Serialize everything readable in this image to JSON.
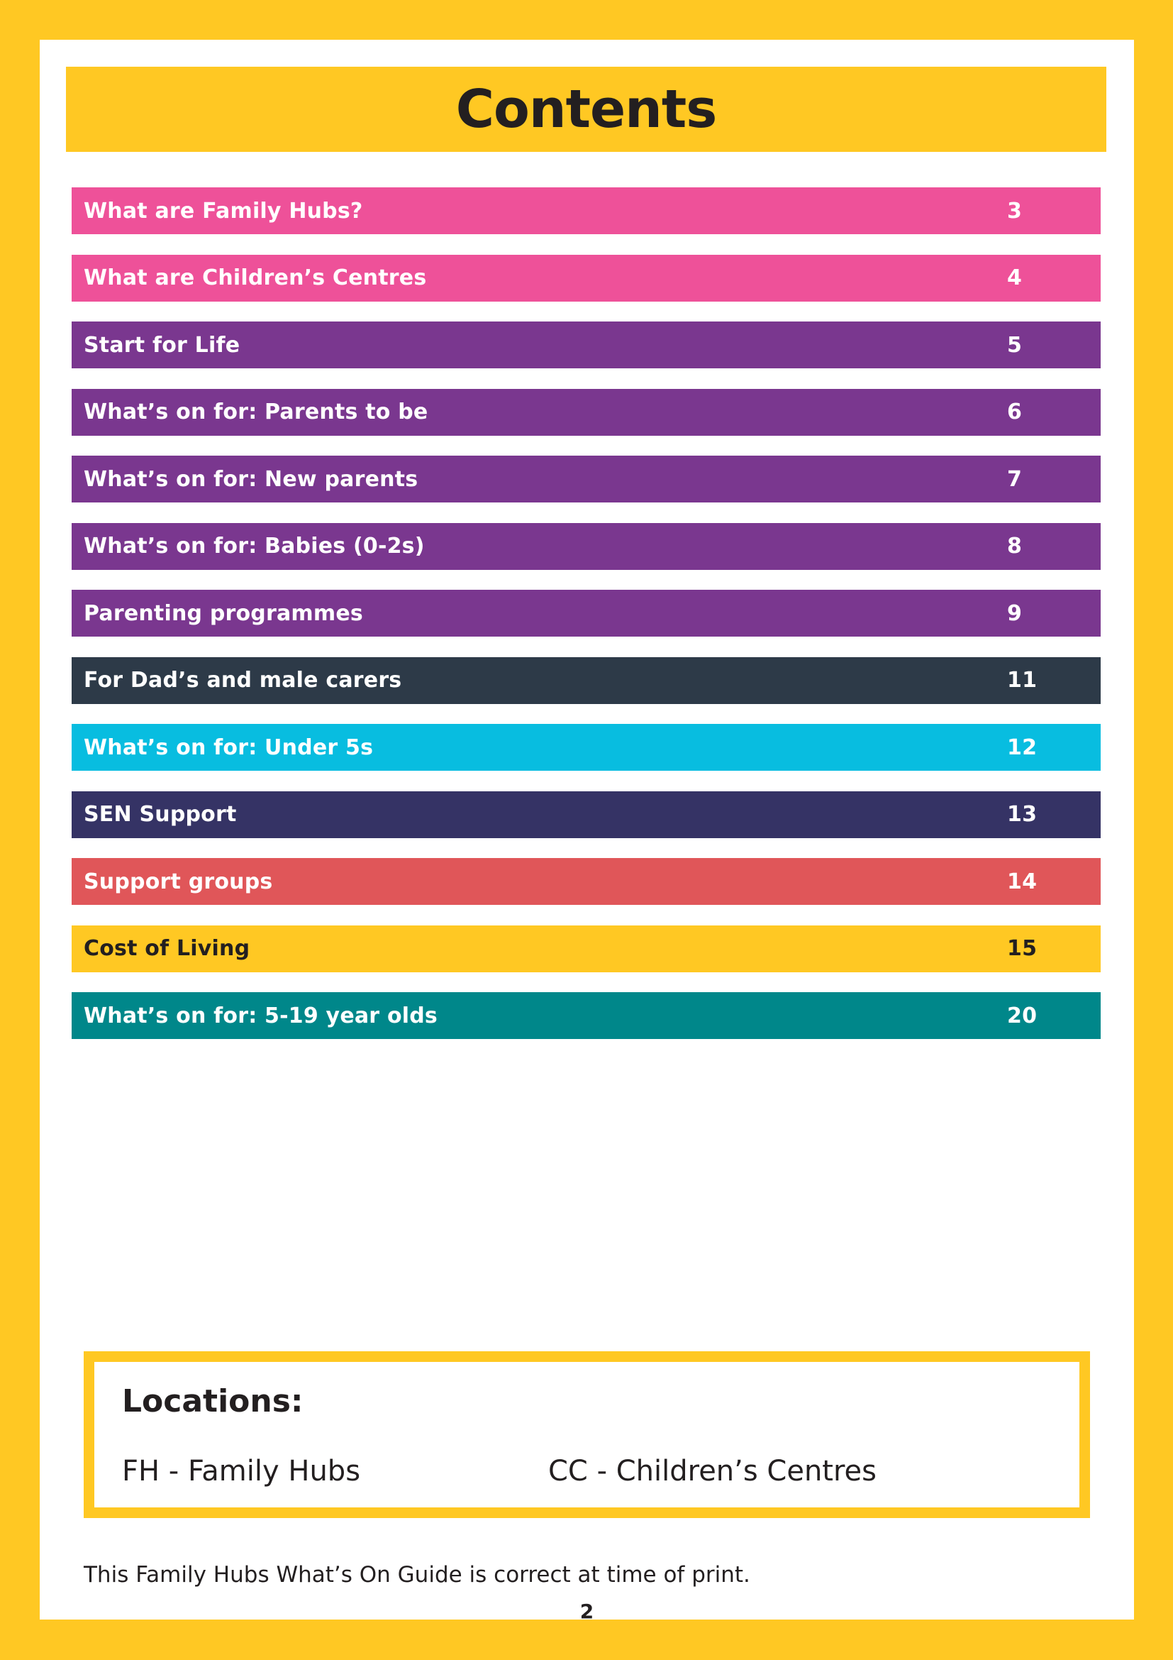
{
  "title": "Contents",
  "toc": [
    {
      "label": "What are Family Hubs?",
      "page": "3",
      "color": "#EE5199",
      "text_color": "#FFFFFF"
    },
    {
      "label": "What are Children’s Centres",
      "page": "4",
      "color": "#EE5199",
      "text_color": "#FFFFFF"
    },
    {
      "label": "Start for Life",
      "page": "5",
      "color": "#7A378F",
      "text_color": "#FFFFFF"
    },
    {
      "label": "What’s on for: Parents to be",
      "page": "6",
      "color": "#7A378F",
      "text_color": "#FFFFFF"
    },
    {
      "label": "What’s on for: New parents",
      "page": "7",
      "color": "#7A378F",
      "text_color": "#FFFFFF"
    },
    {
      "label": "What’s on for: Babies (0-2s)",
      "page": "8",
      "color": "#7A378F",
      "text_color": "#FFFFFF"
    },
    {
      "label": "Parenting programmes",
      "page": "9",
      "color": "#7A378F",
      "text_color": "#FFFFFF"
    },
    {
      "label": "For Dad’s and male carers",
      "page": "11",
      "color": "#2D3A48",
      "text_color": "#FFFFFF"
    },
    {
      "label": "What’s on for: Under 5s",
      "page": "12",
      "color": "#08BDE0",
      "text_color": "#FFFFFF"
    },
    {
      "label": "SEN Support",
      "page": "13",
      "color": "#353365",
      "text_color": "#FFFFFF"
    },
    {
      "label": "Support groups",
      "page": "14",
      "color": "#E05659",
      "text_color": "#FFFFFF"
    },
    {
      "label": "Cost of Living",
      "page": "15",
      "color": "#FFC823",
      "text_color": "#231F20"
    },
    {
      "label": "What’s on for: 5-19 year olds",
      "page": "20",
      "color": "#00878A",
      "text_color": "#FFFFFF"
    }
  ],
  "locations": {
    "heading": "Locations:",
    "fh": "FH - Family Hubs",
    "cc": "CC - Children’s Centres"
  },
  "footnote": "This Family Hubs What’s On Guide is correct at time of print.",
  "page_number": "2",
  "colors": {
    "background": "#FFC823",
    "page": "#FFFFFF",
    "text": "#231F20"
  }
}
